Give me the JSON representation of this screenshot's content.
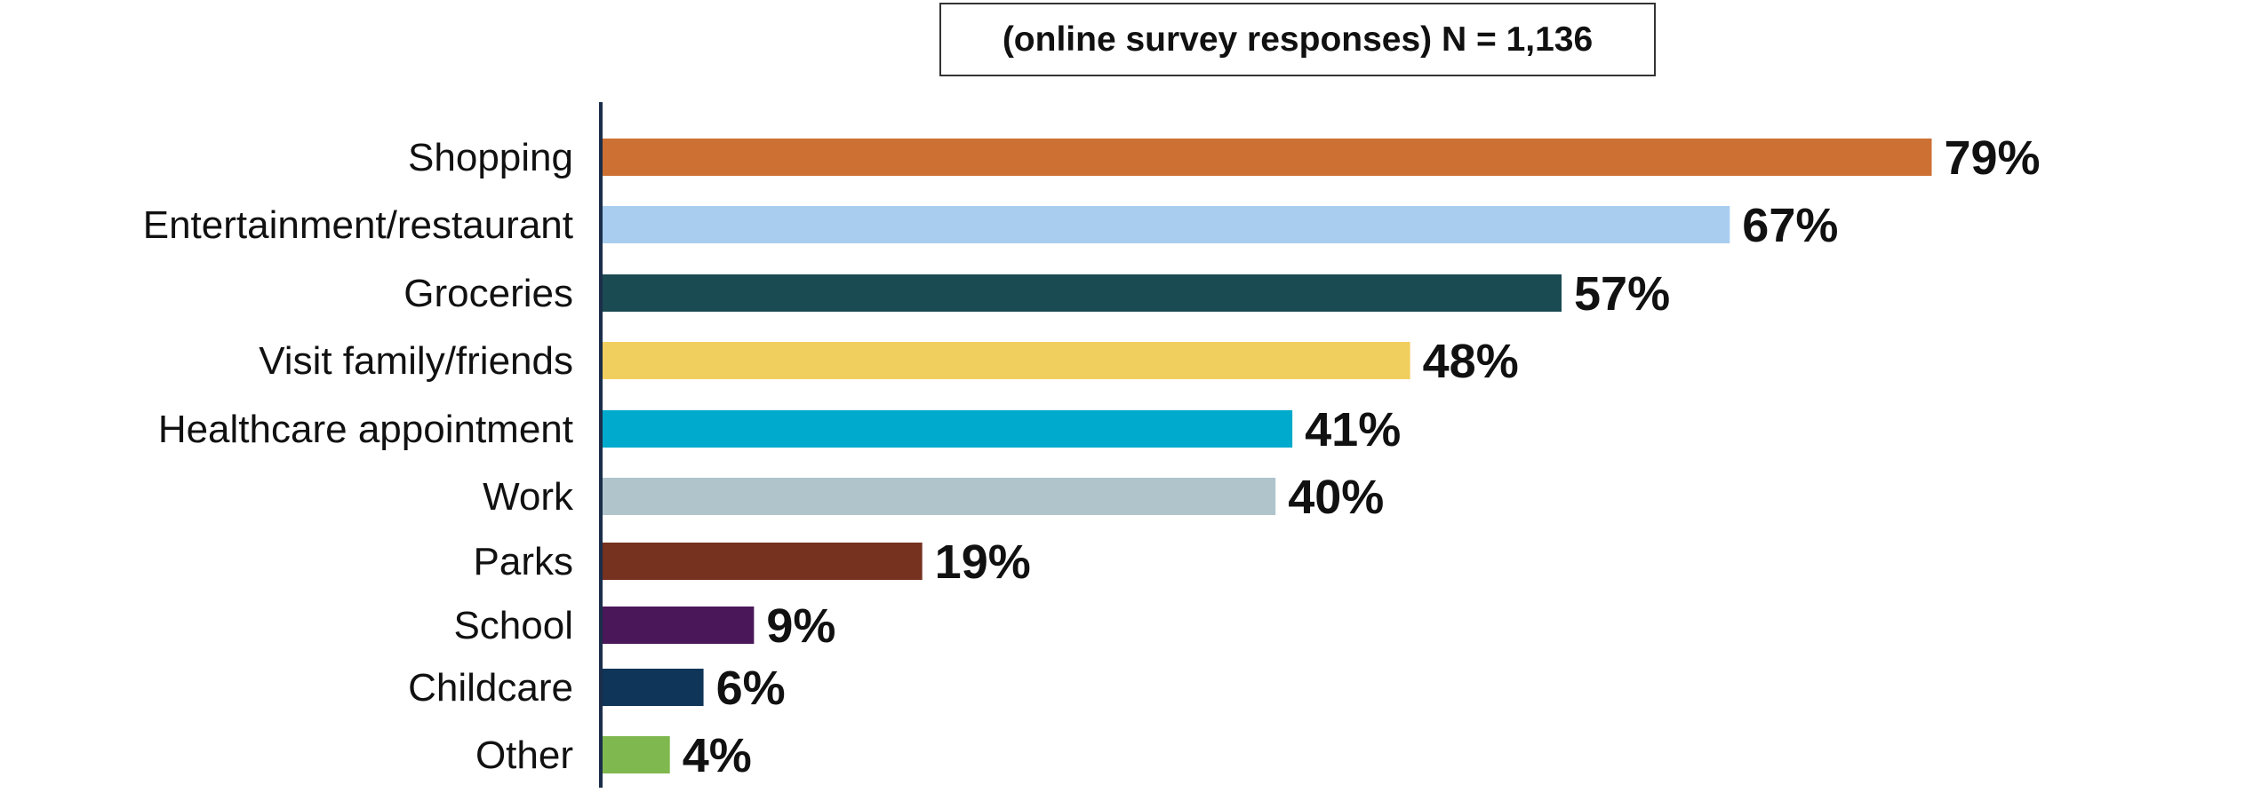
{
  "chart_data": {
    "type": "bar",
    "orientation": "horizontal",
    "title": "(online survey responses) N = 1,136",
    "categories": [
      "Shopping",
      "Entertainment/restaurant",
      "Groceries",
      "Visit family/friends",
      "Healthcare appointment",
      "Work",
      "Parks",
      "School",
      "Childcare",
      "Other"
    ],
    "values": [
      79,
      67,
      57,
      48,
      41,
      40,
      19,
      9,
      6,
      4
    ],
    "value_labels": [
      "79%",
      "67%",
      "57%",
      "48%",
      "41%",
      "40%",
      "19%",
      "9%",
      "6%",
      "4%"
    ],
    "colors": [
      "#cd7033",
      "#a8cdef",
      "#1a4a52",
      "#f1cf5e",
      "#00aacc",
      "#b0c4cc",
      "#76311f",
      "#4a1758",
      "#0f3558",
      "#80b850"
    ],
    "xlabel": "",
    "ylabel": "",
    "xlim": [
      0,
      100
    ],
    "grid": false,
    "legend": "none"
  }
}
